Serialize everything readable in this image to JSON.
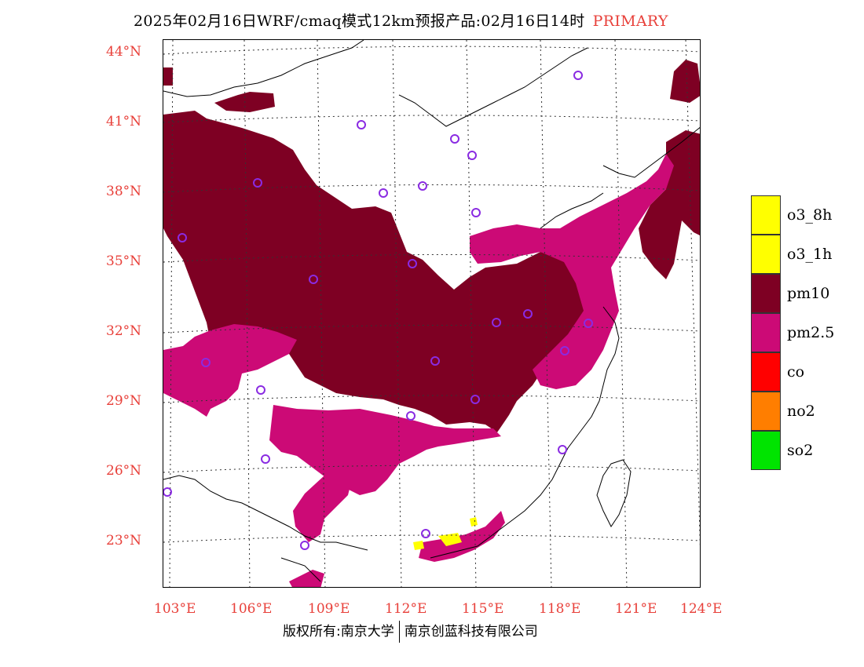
{
  "title": {
    "text": "2025年02月16日WRF/cmaq模式12km预报产品:02月16日14时",
    "tag": "PRIMARY"
  },
  "axes": {
    "lat_labels": [
      "44°N",
      "41°N",
      "38°N",
      "35°N",
      "32°N",
      "29°N",
      "26°N",
      "23°N"
    ],
    "lon_labels": [
      "103°E",
      "106°E",
      "109°E",
      "112°E",
      "115°E",
      "118°E",
      "121°E",
      "124°E"
    ]
  },
  "legend": [
    {
      "label": "o3_8h",
      "color": "#ffff00"
    },
    {
      "label": "o3_1h",
      "color": "#ffff00"
    },
    {
      "label": "pm10",
      "color": "#7e0023"
    },
    {
      "label": "pm2.5",
      "color": "#cc0a76"
    },
    {
      "label": "co",
      "color": "#ff0000"
    },
    {
      "label": "no2",
      "color": "#ff7e00"
    },
    {
      "label": "so2",
      "color": "#00e400"
    }
  ],
  "copyright": {
    "left": "版权所有:南京大学",
    "right": "南京创蓝科技有限公司"
  },
  "colors": {
    "label_red": "#e8403a",
    "pm10": "#7e0023",
    "pm25": "#cc0a76",
    "o3": "#ffff00",
    "marker": "#8a2be2"
  }
}
